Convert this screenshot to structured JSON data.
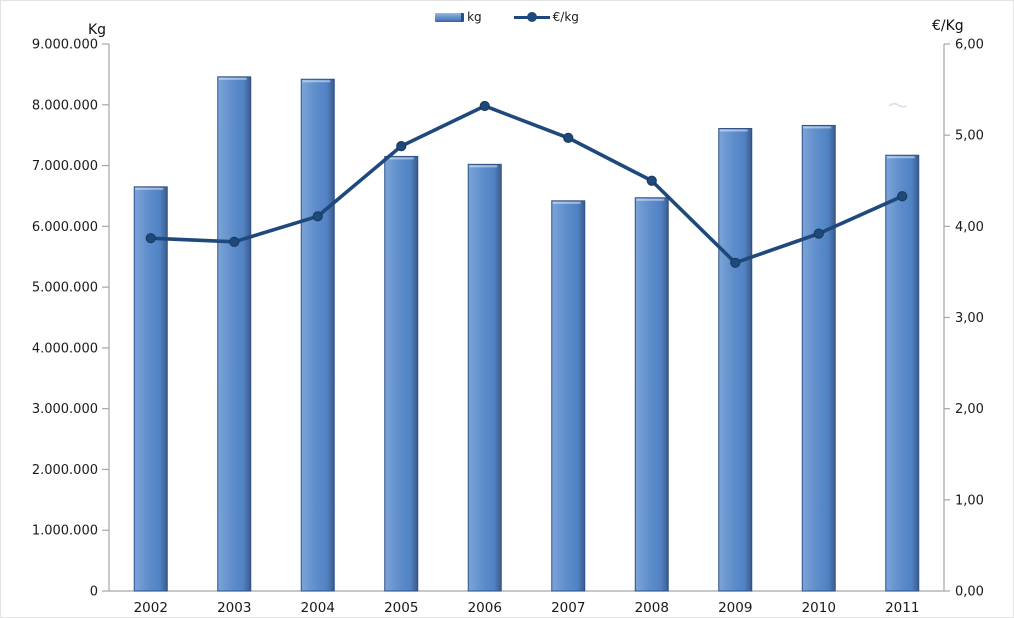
{
  "legend": {
    "kg_label": "kg",
    "eur_label": "€/kg"
  },
  "axes": {
    "left_title": "Kg",
    "right_title": "€/Kg",
    "left_tick_labels": [
      "0",
      "1.000.000",
      "2.000.000",
      "3.000.000",
      "4.000.000",
      "5.000.000",
      "6.000.000",
      "7.000.000",
      "8.000.000",
      "9.000.000"
    ],
    "right_tick_labels": [
      "0,00",
      "1,00",
      "2,00",
      "3,00",
      "4,00",
      "5,00",
      "6,00"
    ]
  },
  "colors": {
    "bar_fill_light": "#7ca4d8",
    "bar_fill_mid": "#5d8dcb",
    "bar_fill_dark": "#44699f",
    "bar_stroke": "#2f5288",
    "line_color": "#1f497d",
    "axis_color": "#a6a6a6",
    "text_color": "#1a1a1a"
  },
  "chart_data": {
    "type": "bar",
    "subtype": "combo-bar-line-dual-axis",
    "title": "",
    "categories": [
      "2002",
      "2003",
      "2004",
      "2005",
      "2006",
      "2007",
      "2008",
      "2009",
      "2010",
      "2011"
    ],
    "series": [
      {
        "name": "kg",
        "type": "bar",
        "axis": "left",
        "values": [
          6650000,
          8460000,
          8420000,
          7150000,
          7020000,
          6420000,
          6470000,
          7610000,
          7660000,
          7170000
        ]
      },
      {
        "name": "€/kg",
        "type": "line",
        "axis": "right",
        "values": [
          3.87,
          3.83,
          4.11,
          4.88,
          5.32,
          4.97,
          4.5,
          3.6,
          3.92,
          4.33
        ]
      }
    ],
    "left_axis": {
      "label": "Kg",
      "range": [
        0,
        9000000
      ],
      "step": 1000000
    },
    "right_axis": {
      "label": "€/Kg",
      "range": [
        0,
        6
      ],
      "step": 1
    },
    "legend_position": "top",
    "grid": false
  }
}
